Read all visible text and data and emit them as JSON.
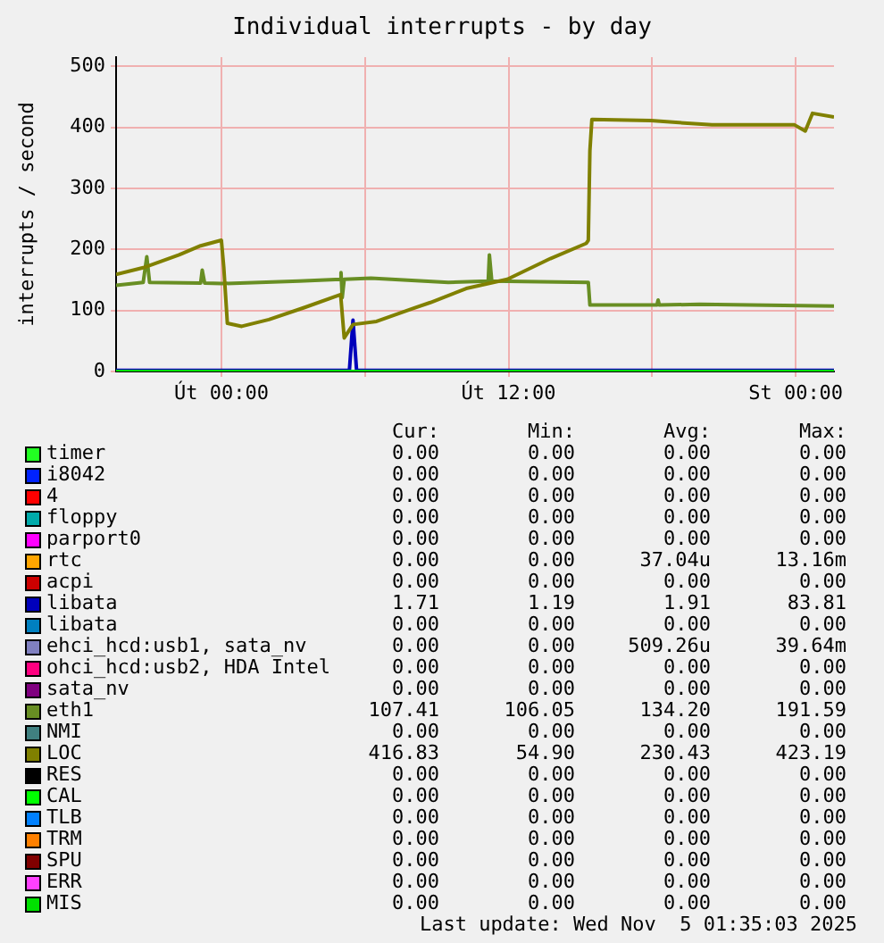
{
  "chart_data": {
    "type": "line",
    "title": "Individual interrupts - by day",
    "ylabel": "interrupts / second",
    "xlim": [
      "2025-11-03T19:36",
      "2025-11-05T01:36"
    ],
    "xticks": [
      {
        "value": "2025-11-04T00:00",
        "label": "Út 00:00"
      },
      {
        "value": "2025-11-04T06:00",
        "label": null
      },
      {
        "value": "2025-11-04T12:00",
        "label": "Út 12:00"
      },
      {
        "value": "2025-11-04T18:00",
        "label": null
      },
      {
        "value": "2025-11-05T00:00",
        "label": "St 00:00"
      }
    ],
    "ylim": [
      0,
      515
    ],
    "yticks": [
      0,
      100,
      200,
      300,
      400,
      500
    ],
    "grid": true,
    "legend": "bottom",
    "marker": "none",
    "line_style": "solid",
    "series": [
      {
        "name": "timer",
        "color": "#22ff22",
        "values": [
          null
        ]
      },
      {
        "name": "i8042",
        "color": "#0022ff",
        "values": [
          null
        ]
      },
      {
        "name": "4",
        "color": "#ff0000",
        "values": [
          null
        ]
      },
      {
        "name": "floppy",
        "color": "#00aaaa",
        "values": [
          null
        ]
      },
      {
        "name": "parport0",
        "color": "#ff00ff",
        "values": [
          null
        ]
      },
      {
        "name": "rtc",
        "color": "#ffa500",
        "values": [
          null
        ]
      },
      {
        "name": "acpi",
        "color": "#cc0000",
        "values": [
          null
        ]
      },
      {
        "name": "libata",
        "color": "#0000bb",
        "x": [
          "2025-11-03T19:36",
          "2025-11-04T05:21",
          "2025-11-04T05:30",
          "2025-11-04T05:39",
          "2025-11-05T01:36"
        ],
        "values": [
          2,
          2,
          84,
          2,
          2
        ]
      },
      {
        "name": "libata",
        "color": "#0080c0",
        "values": [
          null
        ]
      },
      {
        "name": "ehci_hcd:usb1, sata_nv",
        "color": "#8080c0",
        "values": [
          null
        ]
      },
      {
        "name": "ohci_hcd:usb2, HDA Intel",
        "color": "#ff0080",
        "values": [
          null
        ]
      },
      {
        "name": "sata_nv",
        "color": "#800080",
        "values": [
          null
        ]
      },
      {
        "name": "eth1",
        "color": "#688e23",
        "x": [
          "2025-11-03T19:36",
          "2025-11-03T20:44",
          "2025-11-03T20:53",
          "2025-11-03T21:00",
          "2025-11-03T23:08",
          "2025-11-03T23:12",
          "2025-11-03T23:18",
          "2025-11-04T00:00",
          "2025-11-04T03:15",
          "2025-11-04T04:59",
          "2025-11-04T05:00",
          "2025-11-04T05:03",
          "2025-11-04T05:08",
          "2025-11-04T06:15",
          "2025-11-04T09:29",
          "2025-11-04T11:09",
          "2025-11-04T11:12",
          "2025-11-04T11:18",
          "2025-11-04T15:20",
          "2025-11-04T15:24",
          "2025-11-04T18:12",
          "2025-11-04T18:15",
          "2025-11-04T18:18",
          "2025-11-04T19:59",
          "2025-11-05T01:36"
        ],
        "values": [
          141,
          146,
          188,
          146,
          145,
          166,
          145,
          144,
          148,
          151,
          162,
          121,
          151,
          153,
          146,
          148,
          191,
          148,
          146,
          109,
          109,
          117,
          109,
          110,
          107
        ]
      },
      {
        "name": "NMI",
        "color": "#408080",
        "values": [
          null
        ]
      },
      {
        "name": "LOC",
        "color": "#808000",
        "x": [
          "2025-11-03T19:36",
          "2025-11-03T20:44",
          "2025-11-03T22:14",
          "2025-11-03T23:08",
          "2025-11-04T00:00",
          "2025-11-04T00:06",
          "2025-11-04T00:15",
          "2025-11-04T00:51",
          "2025-11-04T01:59",
          "2025-11-04T03:29",
          "2025-11-04T04:59",
          "2025-11-04T05:08",
          "2025-11-04T05:30",
          "2025-11-04T06:29",
          "2025-11-04T07:59",
          "2025-11-04T08:44",
          "2025-11-04T10:14",
          "2025-11-04T11:57",
          "2025-11-04T13:45",
          "2025-11-04T15:15",
          "2025-11-04T15:20",
          "2025-11-04T15:24",
          "2025-11-04T15:29",
          "2025-11-04T17:57",
          "2025-11-04T20:30",
          "2025-11-04T22:45",
          "2025-11-04T23:57",
          "2025-11-05T00:24",
          "2025-11-05T00:42",
          "2025-11-05T01:36"
        ],
        "values": [
          159,
          170,
          191,
          206,
          215,
          171,
          79,
          74,
          85,
          105,
          126,
          55,
          77,
          82,
          103,
          113,
          136,
          151,
          185,
          210,
          215,
          362,
          413,
          411,
          404,
          404,
          404,
          394,
          423,
          417
        ]
      },
      {
        "name": "RES",
        "color": "#000000",
        "values": [
          null
        ]
      },
      {
        "name": "CAL",
        "color": "#00ff00",
        "values": [
          null
        ]
      },
      {
        "name": "TLB",
        "color": "#0080ff",
        "values": [
          null
        ]
      },
      {
        "name": "TRM",
        "color": "#ff8000",
        "values": [
          null
        ]
      },
      {
        "name": "SPU",
        "color": "#800000",
        "values": [
          null
        ]
      },
      {
        "name": "ERR",
        "color": "#ff40ff",
        "values": [
          null
        ]
      },
      {
        "name": "MIS",
        "color": "#00e000",
        "x": [
          "2025-11-03T19:36",
          "2025-11-05T01:36"
        ],
        "values": [
          0,
          0
        ]
      }
    ],
    "annotations": [
      "Cur:",
      "Min:",
      "Avg:",
      "Max:",
      "0.00",
      "0.00",
      "0.00",
      "0.00",
      "0.00",
      "0.00",
      "0.00",
      "0.00",
      "0.00",
      "0.00",
      "0.00",
      "0.00",
      "0.00",
      "0.00",
      "0.00",
      "0.00",
      "0.00",
      "0.00",
      "0.00",
      "0.00",
      "0.00",
      "0.00",
      "37.04u",
      "13.16m",
      "0.00",
      "0.00",
      "0.00",
      "0.00",
      "1.71",
      "1.19",
      "1.91",
      "83.81",
      "0.00",
      "0.00",
      "0.00",
      "0.00",
      "0.00",
      "0.00",
      "509.26u",
      "39.64m",
      "0.00",
      "0.00",
      "0.00",
      "0.00",
      "0.00",
      "0.00",
      "0.00",
      "0.00",
      "107.41",
      "106.05",
      "134.20",
      "191.59",
      "0.00",
      "0.00",
      "0.00",
      "0.00",
      "416.83",
      "54.90",
      "230.43",
      "423.19",
      "0.00",
      "0.00",
      "0.00",
      "0.00",
      "0.00",
      "0.00",
      "0.00",
      "0.00",
      "0.00",
      "0.00",
      "0.00",
      "0.00",
      "0.00",
      "0.00",
      "0.00",
      "0.00",
      "0.00",
      "0.00",
      "0.00",
      "0.00",
      "0.00",
      "0.00",
      "0.00",
      "0.00",
      "0.00",
      "0.00",
      "0.00",
      "0.00",
      "Last update: Wed Nov  5 01:35:03 2025"
    ]
  }
}
